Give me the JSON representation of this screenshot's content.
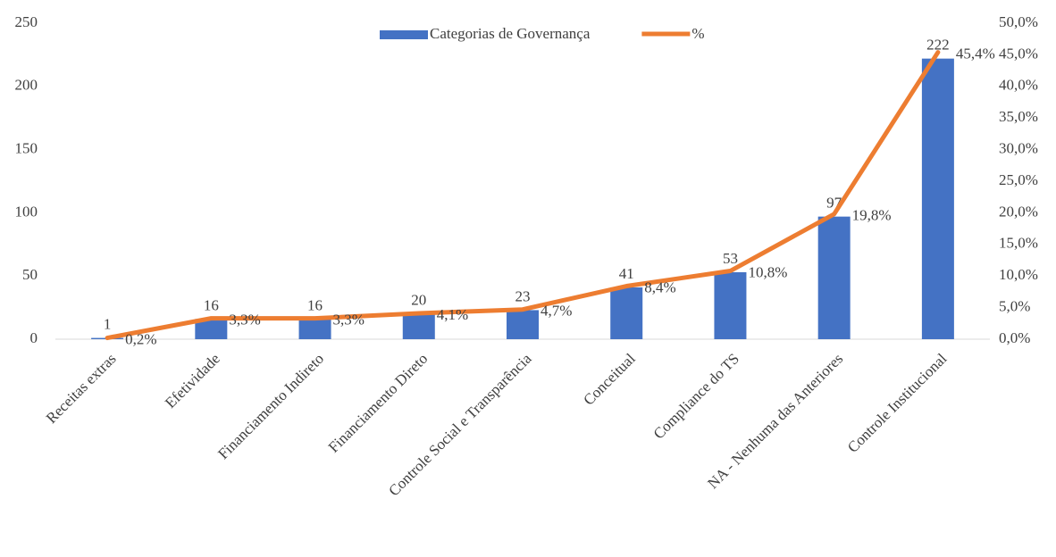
{
  "chart_data": {
    "type": "bar",
    "categories": [
      "Receitas extras",
      "Efetividade",
      "Financiamento Indireto",
      "Financiamento Direto",
      "Controle Social e Transparência",
      "Conceitual",
      "Compliance do TS",
      "NA - Nenhuma das Anteriores",
      "Controle Institucional"
    ],
    "series": [
      {
        "name": "Categorias de Governança",
        "type": "bar",
        "color": "#4472c4",
        "values": [
          1,
          16,
          16,
          20,
          23,
          41,
          53,
          97,
          222
        ]
      },
      {
        "name": "%",
        "type": "line",
        "axis": "y2",
        "color": "#ed7d31",
        "values": [
          0.2,
          3.3,
          3.3,
          4.1,
          4.7,
          8.4,
          10.8,
          19.8,
          45.4
        ],
        "value_labels": [
          "0,2%",
          "3,3%",
          "3,3%",
          "4,1%",
          "4,7%",
          "8,4%",
          "10,8%",
          "19,8%",
          "45,4%"
        ]
      }
    ],
    "ylim": [
      0,
      250
    ],
    "yticks": [
      0,
      50,
      100,
      150,
      200,
      250
    ],
    "y2lim": [
      0,
      50
    ],
    "y2ticks": [
      {
        "value": 0,
        "label": "0,0%"
      },
      {
        "value": 5,
        "label": "5,0%"
      },
      {
        "value": 10,
        "label": "10,0%"
      },
      {
        "value": 15,
        "label": "15,0%"
      },
      {
        "value": 20,
        "label": "20,0%"
      },
      {
        "value": 25,
        "label": "25,0%"
      },
      {
        "value": 30,
        "label": "30,0%"
      },
      {
        "value": 35,
        "label": "35,0%"
      },
      {
        "value": 40,
        "label": "40,0%"
      },
      {
        "value": 45,
        "label": "45,0%"
      },
      {
        "value": 50,
        "label": "50,0%"
      }
    ],
    "grid": false
  }
}
